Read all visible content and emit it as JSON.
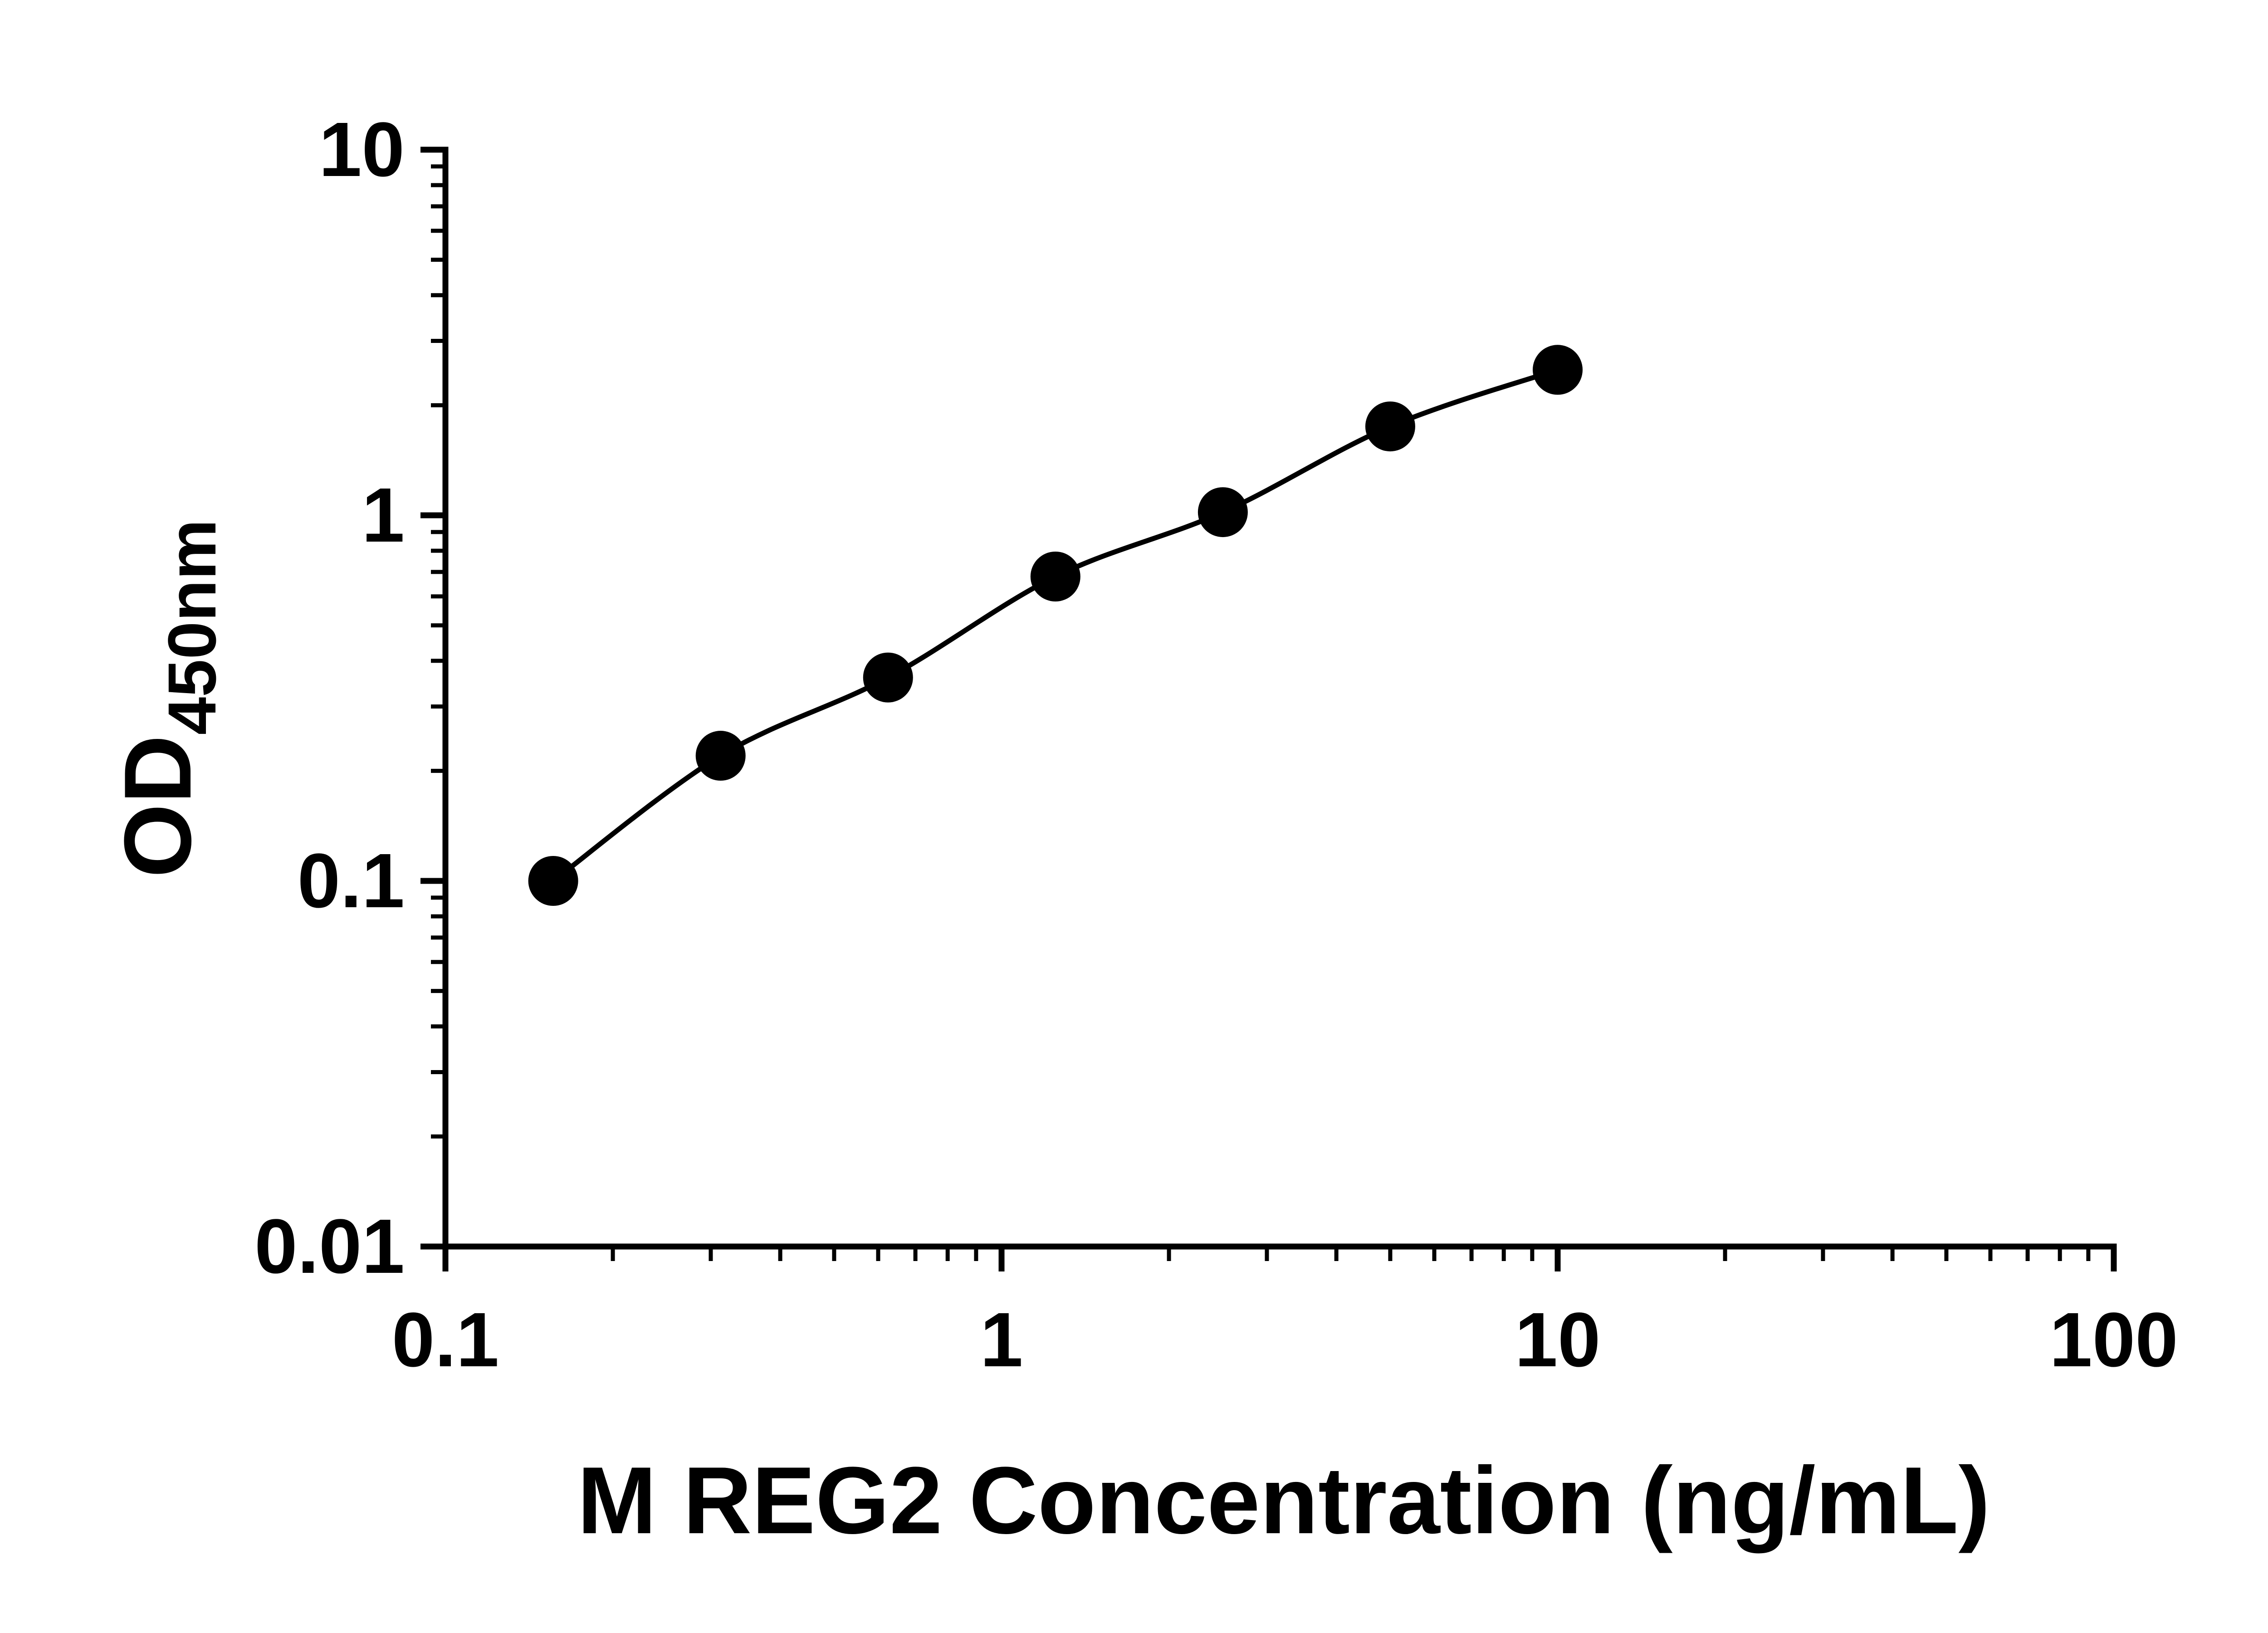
{
  "figure": {
    "background": "#ffffff",
    "axis_color": "#000000"
  },
  "chart_data": {
    "type": "scatter",
    "title": "",
    "xlabel": "M REG2 Concentration (ng/mL)",
    "ylabel": "OD450nm",
    "ylabel_main": "OD",
    "ylabel_sub": "450nm",
    "x_scale": "log",
    "y_scale": "log",
    "xlim": [
      0.1,
      100
    ],
    "ylim": [
      0.01,
      10
    ],
    "x": [
      0.15625,
      0.3125,
      0.625,
      1.25,
      2.5,
      5,
      10
    ],
    "y": [
      0.1,
      0.22,
      0.36,
      0.68,
      1.02,
      1.75,
      2.5
    ],
    "x_ticks": [
      0.1,
      1,
      10,
      100
    ],
    "x_tick_labels": [
      "0.1",
      "1",
      "10",
      "100"
    ],
    "y_ticks": [
      0.01,
      0.1,
      1,
      10
    ],
    "y_tick_labels": [
      "0.01",
      "0.1",
      "1",
      "10"
    ],
    "grid": false,
    "legend": null,
    "marker": "circle",
    "marker_color": "#000000",
    "line_color": "#000000",
    "series_count": 1
  }
}
